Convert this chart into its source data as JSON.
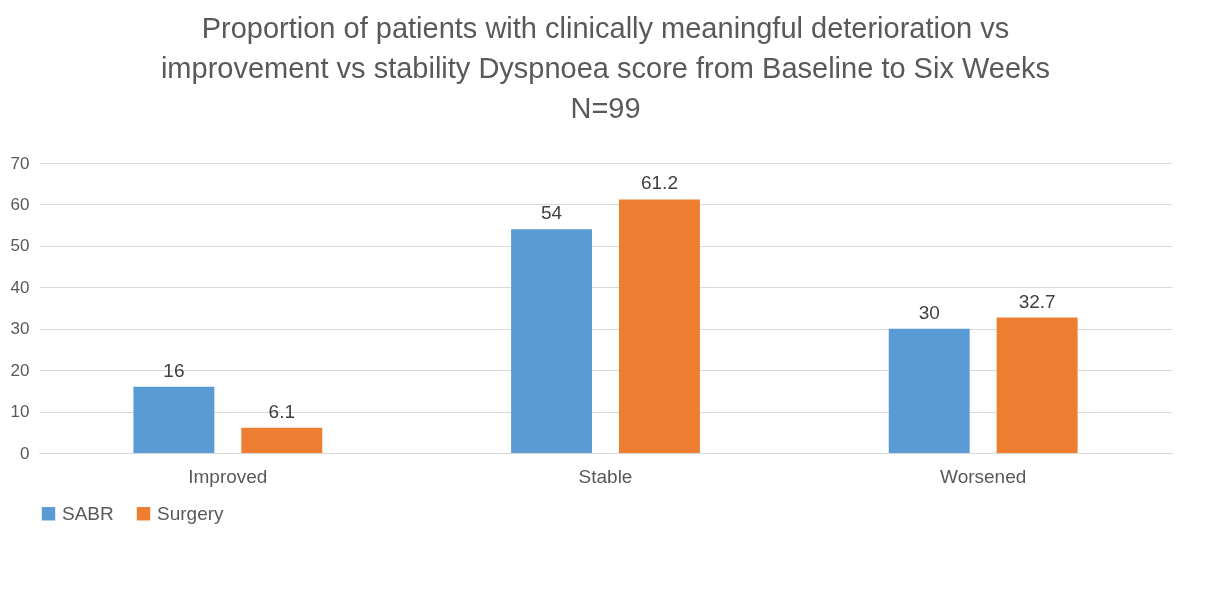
{
  "chart_data": {
    "type": "bar",
    "title": "Proportion of patients with clinically meaningful deterioration vs improvement vs stability Dyspnoea score from Baseline to Six Weeks N=99",
    "categories": [
      "Improved",
      "Stable",
      "Worsened"
    ],
    "series": [
      {
        "name": "SABR",
        "color": "#5b9bd5",
        "values": [
          16,
          54,
          30
        ]
      },
      {
        "name": "Surgery",
        "color": "#ed7d31",
        "values": [
          6.1,
          61.2,
          32.7
        ]
      }
    ],
    "ylim": [
      0,
      70
    ],
    "yticks": [
      0,
      10,
      20,
      30,
      40,
      50,
      60,
      70
    ],
    "grid": "y",
    "legend": "bottom",
    "data_labels": true
  }
}
